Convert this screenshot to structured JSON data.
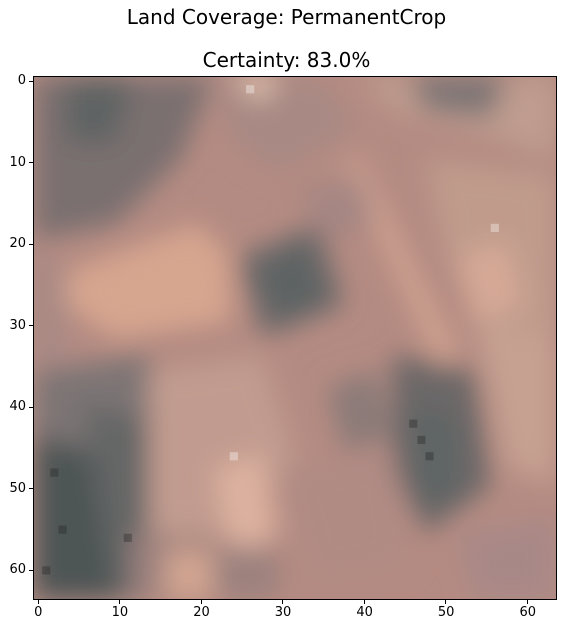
{
  "figure": {
    "title": "Land Coverage: PermanentCrop",
    "subtitle": "Certainty: 83.0%"
  },
  "axes": {
    "xticks": [
      "0",
      "10",
      "20",
      "30",
      "40",
      "50",
      "60"
    ],
    "yticks": [
      "0",
      "10",
      "20",
      "30",
      "40",
      "50",
      "60"
    ],
    "xlim": [
      -0.5,
      63.5
    ],
    "ylim": [
      63.5,
      -0.5
    ]
  },
  "image": {
    "description_grid": "64x64 pixel satellite tile",
    "palette": {
      "light": "#d9a994",
      "mid": "#b58c84",
      "dark": "#6a6565",
      "darkest": "#4a4f52"
    }
  }
}
